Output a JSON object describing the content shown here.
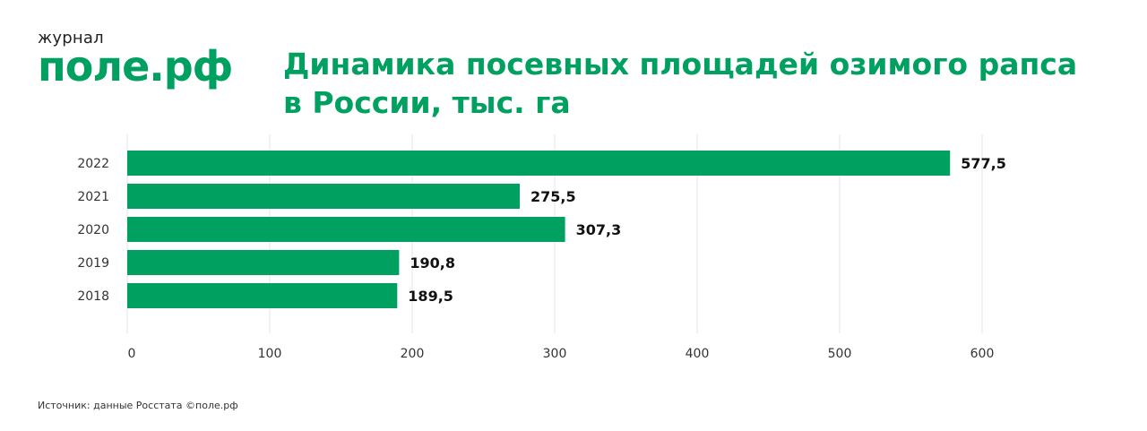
{
  "logo": {
    "small": "журнал",
    "big": "поле.рф"
  },
  "title_line1": "Динамика посевных площадей озимого рапса",
  "title_line2": "в России, тыс. га",
  "source": "Источник: данные Росстата ©поле.рф",
  "colors": {
    "bar": "#00a060",
    "grid": "#e6e6e6",
    "text": "#333333"
  },
  "chart_data": {
    "type": "bar",
    "orientation": "horizontal",
    "categories": [
      "2022",
      "2021",
      "2020",
      "2019",
      "2018"
    ],
    "values": [
      577.5,
      275.5,
      307.3,
      190.8,
      189.5
    ],
    "value_labels": [
      "577,5",
      "275,5",
      "307,3",
      "190,8",
      "189,5"
    ],
    "xlim": [
      0,
      600
    ],
    "xticks": [
      0,
      100,
      200,
      300,
      400,
      500,
      600
    ],
    "grid": true
  }
}
